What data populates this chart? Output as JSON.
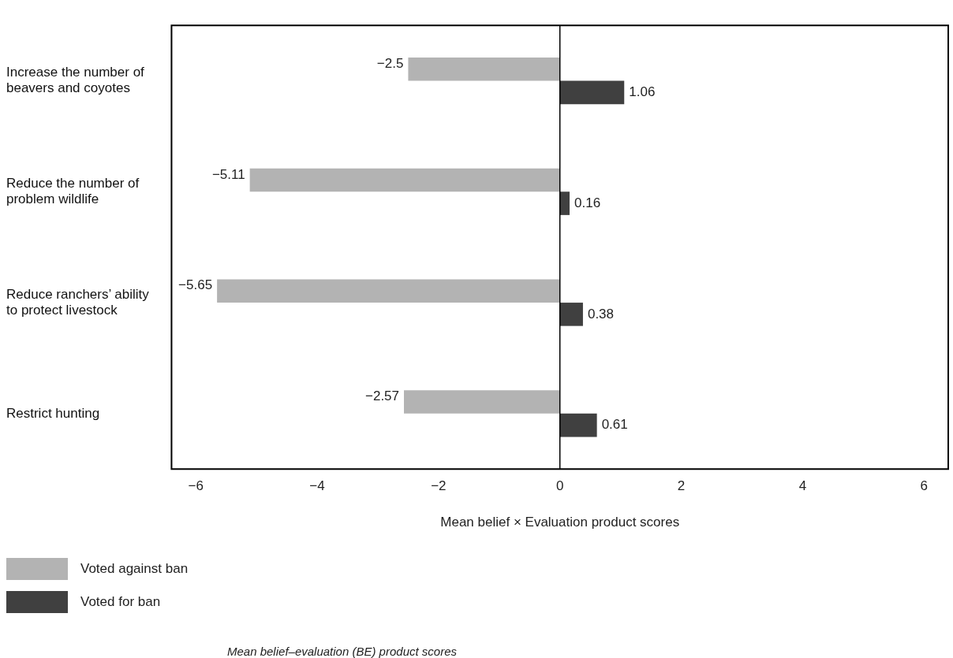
{
  "chart_data": {
    "type": "bar",
    "orientation": "horizontal",
    "xlabel": "Mean belief × Evaluation product scores",
    "categories": [
      "Increase the number of beavers and coyotes",
      "Reduce the number of problem wildlife",
      "Reduce ranchers’ ability to protect livestock",
      "Restrict hunting"
    ],
    "series": [
      {
        "name": "Voted against ban",
        "color": "#b3b3b3",
        "values": [
          -2.5,
          -5.11,
          -5.65,
          -2.57
        ]
      },
      {
        "name": "Voted for ban",
        "color": "#404040",
        "values": [
          1.06,
          0.16,
          0.38,
          0.61
        ]
      }
    ],
    "xlim": [
      -6.4,
      6.4
    ],
    "xticks": [
      -6,
      -4,
      -2,
      0,
      2,
      4,
      6
    ],
    "grid": false,
    "legend": "bottom left",
    "data_labels": true,
    "ref_lines": [
      {
        "axis": "x",
        "value": 0,
        "color": "#000000"
      }
    ],
    "annotations": [
      "Mean belief–evaluation (BE) product scores"
    ]
  }
}
